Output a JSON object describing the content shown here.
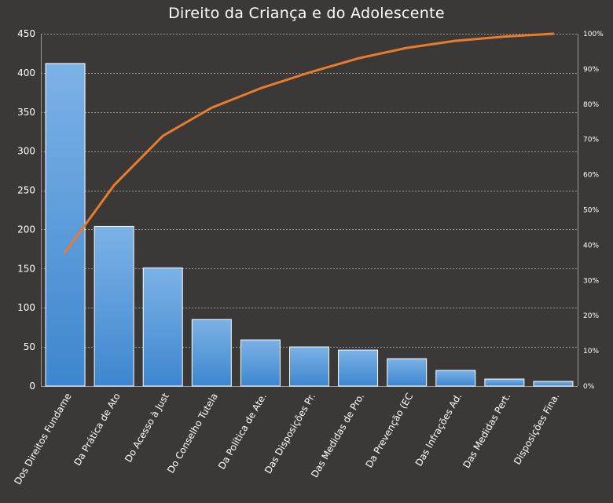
{
  "chart_data": {
    "type": "bar",
    "title": "Direito da Criança e do Adolescente",
    "xlabel": "",
    "ylabel": "",
    "categories": [
      "Dos Direitos Fundame",
      "Da Prática de Ato",
      "Do Acesso à Just",
      "Do Conselho Tutela",
      "Da Política de Ate.",
      "Das Disposições Pr.",
      "Das Medidas de Pro.",
      "Da Prevenção (EC",
      "Das Infrações Ad.",
      "Das Medidas Pert.",
      "Disposições Fina."
    ],
    "series": [
      {
        "type": "bar",
        "values": [
          412,
          204,
          151,
          85,
          59,
          50,
          46,
          35,
          20,
          9,
          6
        ]
      },
      {
        "type": "line",
        "axis": "right",
        "values": [
          38,
          57,
          71,
          79,
          84.5,
          89,
          93,
          96,
          98,
          99.2,
          100
        ]
      }
    ],
    "ylim": [
      0,
      450
    ],
    "yticks": [
      "0",
      "50",
      "100",
      "150",
      "200",
      "250",
      "300",
      "350",
      "400",
      "450"
    ],
    "y2lim": [
      0,
      100
    ],
    "y2ticks": [
      "0%",
      "10%",
      "20%",
      "30%",
      "40%",
      "50%",
      "60%",
      "70%",
      "80%",
      "90%",
      "100%"
    ],
    "grid": true,
    "legend": "none",
    "colors": {
      "background": "#3b3938",
      "bar_top": "#7cb2e6",
      "bar_bottom": "#3d86cf",
      "bar_border": "#ffffff",
      "line": "#e87b2c",
      "grid": "#9a9a9a",
      "text": "#ffffff"
    }
  }
}
